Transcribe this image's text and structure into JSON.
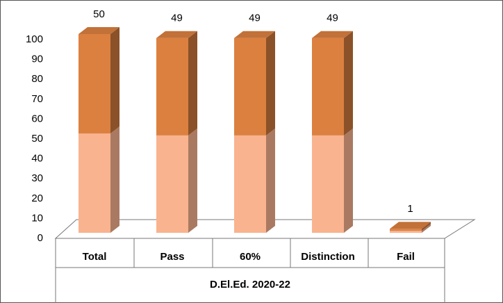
{
  "chart_data": {
    "type": "bar3d_stacked",
    "categories": [
      "Total",
      "Pass",
      "60%",
      "Distinction",
      "Fail"
    ],
    "group_label": "D.El.Ed. 2020-22",
    "series": [
      {
        "color": "#f9b38f",
        "values": [
          50,
          49,
          49,
          49,
          1
        ]
      },
      {
        "color": "#dc8040",
        "values": [
          50,
          49,
          49,
          49,
          1
        ]
      }
    ],
    "ylim": [
      0,
      100
    ],
    "yticks": [
      0,
      10,
      20,
      30,
      40,
      50,
      60,
      70,
      80,
      90,
      100
    ]
  }
}
